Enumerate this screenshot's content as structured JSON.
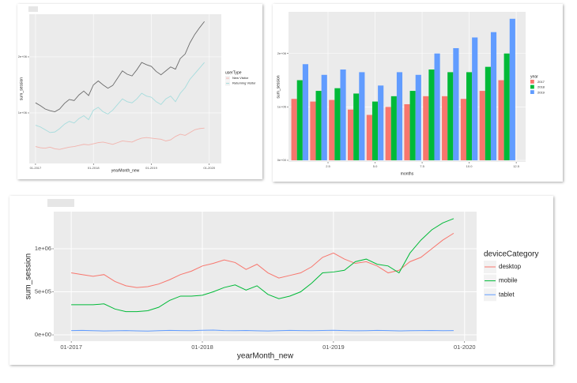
{
  "chart_data": [
    {
      "type": "line",
      "x_label": "yearMonth_new",
      "y_label": "sum_session",
      "legend_title": "userType",
      "x": [
        0,
        1,
        2,
        3,
        4,
        5,
        6,
        7,
        8,
        9,
        10,
        11,
        12,
        13,
        14,
        15,
        16,
        17,
        18,
        19,
        20,
        21,
        22,
        23,
        24,
        25,
        26,
        27,
        28,
        29,
        30,
        31,
        32,
        33,
        34,
        35
      ],
      "xlim": [
        -1.3,
        38.5
      ],
      "xticks": [
        {
          "value": 0,
          "label": "01-2017"
        },
        {
          "value": 12,
          "label": "01-2018"
        },
        {
          "value": 24,
          "label": "01-2019"
        },
        {
          "value": 36,
          "label": "01-2020"
        }
      ],
      "ylim": [
        98600,
        2760000
      ],
      "yticks": [
        {
          "value": 1000000,
          "label": "1e+06"
        },
        {
          "value": 2000000,
          "label": "2e+06"
        }
      ],
      "grid": true,
      "series": [
        {
          "color": "#6b6b6b",
          "values": [
            1180000,
            1130000,
            1070000,
            1040000,
            1020000,
            1070000,
            1170000,
            1240000,
            1220000,
            1320000,
            1390000,
            1310000,
            1500000,
            1570000,
            1500000,
            1440000,
            1490000,
            1620000,
            1750000,
            1690000,
            1660000,
            1770000,
            1900000,
            1860000,
            1830000,
            1740000,
            1680000,
            1750000,
            1820000,
            1780000,
            1970000,
            2050000,
            2250000,
            2400000,
            2520000,
            2630000
          ]
        },
        {
          "name": "New Visitor",
          "color": "#f2b3ad",
          "values": [
            400000,
            380000,
            370000,
            390000,
            360000,
            350000,
            370000,
            390000,
            400000,
            420000,
            440000,
            430000,
            450000,
            470000,
            480000,
            460000,
            440000,
            470000,
            500000,
            490000,
            480000,
            520000,
            550000,
            560000,
            550000,
            540000,
            530000,
            500000,
            520000,
            580000,
            620000,
            600000,
            650000,
            700000,
            720000,
            730000
          ]
        },
        {
          "name": "Returning Visitor",
          "color": "#a6dcdd",
          "values": [
            780000,
            750000,
            700000,
            650000,
            660000,
            720000,
            800000,
            850000,
            820000,
            900000,
            950000,
            880000,
            1050000,
            1100000,
            1020000,
            980000,
            1050000,
            1150000,
            1250000,
            1200000,
            1180000,
            1250000,
            1350000,
            1300000,
            1280000,
            1200000,
            1150000,
            1250000,
            1300000,
            1200000,
            1350000,
            1450000,
            1600000,
            1700000,
            1800000,
            1900000
          ]
        }
      ]
    },
    {
      "type": "bar",
      "x_label": "months",
      "y_label": "sum_session",
      "legend_title": "year",
      "x": [
        1,
        2,
        3,
        4,
        5,
        6,
        7,
        8,
        9,
        10,
        11,
        12
      ],
      "xlim": [
        0.4,
        13.0
      ],
      "xticks": [
        2.5,
        {
          "value": 5,
          "label": "5.0"
        },
        7.5,
        {
          "value": 10,
          "label": "10.0"
        },
        12.5
      ],
      "ylim": [
        -30000,
        2780000
      ],
      "yticks": [
        {
          "value": 0,
          "label": "0e+00"
        },
        {
          "value": 1000000,
          "label": "1e+06"
        },
        {
          "value": 2000000,
          "label": "2e+06"
        }
      ],
      "grid": true,
      "series": [
        {
          "name": "2017",
          "color": "#F8766D",
          "values": [
            1150000,
            1100000,
            1130000,
            950000,
            850000,
            1000000,
            1050000,
            1200000,
            1200000,
            1150000,
            1300000,
            1500000
          ]
        },
        {
          "name": "2018",
          "color": "#00BA38",
          "values": [
            1500000,
            1300000,
            1350000,
            1250000,
            1100000,
            1200000,
            1300000,
            1700000,
            1650000,
            1650000,
            1750000,
            2000000
          ]
        },
        {
          "name": "2019",
          "color": "#619CFF",
          "values": [
            1800000,
            1600000,
            1700000,
            1650000,
            1400000,
            1650000,
            1600000,
            2000000,
            2100000,
            2300000,
            2400000,
            2650000
          ]
        }
      ]
    },
    {
      "type": "line",
      "x_label": "yearMonth_new",
      "y_label": "sum_session",
      "legend_title": "deviceCategory",
      "x": [
        0,
        1,
        2,
        3,
        4,
        5,
        6,
        7,
        8,
        9,
        10,
        11,
        12,
        13,
        14,
        15,
        16,
        17,
        18,
        19,
        20,
        21,
        22,
        23,
        24,
        25,
        26,
        27,
        28,
        29,
        30,
        31,
        32,
        33,
        34,
        35
      ],
      "xlim": [
        -1.6,
        37.1
      ],
      "xticks": [
        {
          "value": 0,
          "label": "01-2017"
        },
        {
          "value": 12,
          "label": "01-2018"
        },
        {
          "value": 24,
          "label": "01-2019"
        },
        {
          "value": 36,
          "label": "01-2020"
        }
      ],
      "ylim": [
        -73000,
        1431000
      ],
      "yticks": [
        {
          "value": 0,
          "label": "0e+00"
        },
        {
          "value": 500000,
          "label": "5e+05"
        },
        {
          "value": 1000000,
          "label": "1e+06"
        }
      ],
      "grid": true,
      "series": [
        {
          "name": "desktop",
          "color": "#F8766D",
          "values": [
            720000,
            700000,
            680000,
            700000,
            620000,
            570000,
            550000,
            560000,
            590000,
            640000,
            700000,
            740000,
            800000,
            830000,
            870000,
            840000,
            760000,
            820000,
            720000,
            660000,
            690000,
            720000,
            790000,
            900000,
            950000,
            880000,
            830000,
            850000,
            800000,
            720000,
            750000,
            850000,
            900000,
            1000000,
            1100000,
            1180000
          ]
        },
        {
          "name": "mobile",
          "color": "#00BA38",
          "values": [
            350000,
            350000,
            350000,
            360000,
            300000,
            270000,
            270000,
            280000,
            320000,
            400000,
            450000,
            450000,
            460000,
            500000,
            550000,
            580000,
            520000,
            570000,
            470000,
            420000,
            450000,
            500000,
            600000,
            720000,
            730000,
            750000,
            850000,
            880000,
            820000,
            800000,
            720000,
            950000,
            1100000,
            1220000,
            1300000,
            1350000
          ]
        },
        {
          "name": "tablet",
          "color": "#619CFF",
          "values": [
            50000,
            52000,
            48000,
            45000,
            47000,
            50000,
            46000,
            44000,
            48000,
            52000,
            50000,
            49000,
            53000,
            55000,
            50000,
            48000,
            51000,
            47000,
            45000,
            49000,
            52000,
            50000,
            48000,
            51000,
            53000,
            50000,
            47000,
            49000,
            52000,
            50000,
            46000,
            48000,
            50000,
            51000,
            49000,
            50000
          ]
        }
      ]
    }
  ]
}
